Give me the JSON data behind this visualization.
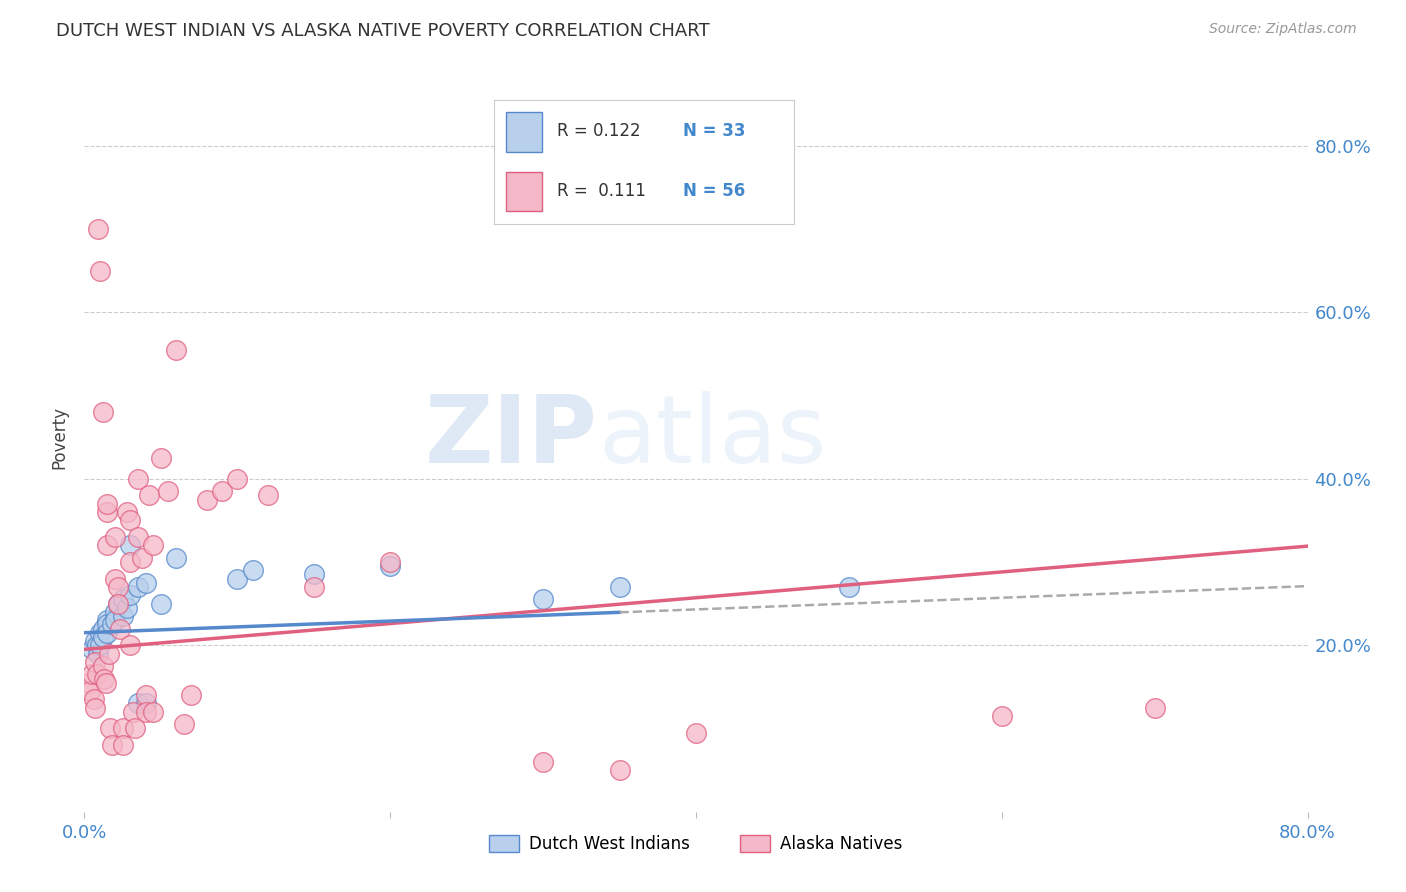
{
  "title": "DUTCH WEST INDIAN VS ALASKA NATIVE POVERTY CORRELATION CHART",
  "source": "Source: ZipAtlas.com",
  "ylabel": "Poverty",
  "ytick_labels": [
    "20.0%",
    "40.0%",
    "60.0%",
    "80.0%"
  ],
  "ytick_vals": [
    0.2,
    0.4,
    0.6,
    0.8
  ],
  "xlim": [
    0.0,
    0.8
  ],
  "ylim": [
    0.0,
    0.9
  ],
  "r_blue": 0.122,
  "n_blue": 33,
  "r_pink": 0.111,
  "n_pink": 56,
  "blue_fill": "#b8d0eb",
  "pink_fill": "#f5b8c8",
  "blue_edge": "#5588cc",
  "pink_edge": "#e06080",
  "blue_line_color": "#5588cc",
  "pink_line_color": "#e06080",
  "dash_color": "#aaaaaa",
  "blue_scatter": [
    [
      0.005,
      0.195
    ],
    [
      0.007,
      0.205
    ],
    [
      0.008,
      0.2
    ],
    [
      0.009,
      0.19
    ],
    [
      0.01,
      0.215
    ],
    [
      0.01,
      0.2
    ],
    [
      0.012,
      0.22
    ],
    [
      0.012,
      0.21
    ],
    [
      0.015,
      0.23
    ],
    [
      0.015,
      0.225
    ],
    [
      0.015,
      0.215
    ],
    [
      0.018,
      0.225
    ],
    [
      0.02,
      0.24
    ],
    [
      0.02,
      0.23
    ],
    [
      0.022,
      0.25
    ],
    [
      0.025,
      0.255
    ],
    [
      0.025,
      0.235
    ],
    [
      0.028,
      0.245
    ],
    [
      0.03,
      0.32
    ],
    [
      0.03,
      0.26
    ],
    [
      0.035,
      0.27
    ],
    [
      0.035,
      0.13
    ],
    [
      0.04,
      0.275
    ],
    [
      0.04,
      0.13
    ],
    [
      0.05,
      0.25
    ],
    [
      0.06,
      0.305
    ],
    [
      0.1,
      0.28
    ],
    [
      0.11,
      0.29
    ],
    [
      0.15,
      0.285
    ],
    [
      0.2,
      0.295
    ],
    [
      0.3,
      0.255
    ],
    [
      0.35,
      0.27
    ],
    [
      0.5,
      0.27
    ]
  ],
  "pink_scatter": [
    [
      0.003,
      0.155
    ],
    [
      0.004,
      0.145
    ],
    [
      0.005,
      0.165
    ],
    [
      0.006,
      0.135
    ],
    [
      0.007,
      0.125
    ],
    [
      0.007,
      0.18
    ],
    [
      0.008,
      0.165
    ],
    [
      0.009,
      0.7
    ],
    [
      0.01,
      0.65
    ],
    [
      0.012,
      0.48
    ],
    [
      0.012,
      0.175
    ],
    [
      0.013,
      0.16
    ],
    [
      0.014,
      0.155
    ],
    [
      0.015,
      0.36
    ],
    [
      0.015,
      0.37
    ],
    [
      0.015,
      0.32
    ],
    [
      0.016,
      0.19
    ],
    [
      0.017,
      0.1
    ],
    [
      0.018,
      0.08
    ],
    [
      0.02,
      0.33
    ],
    [
      0.02,
      0.28
    ],
    [
      0.022,
      0.27
    ],
    [
      0.022,
      0.25
    ],
    [
      0.023,
      0.22
    ],
    [
      0.025,
      0.1
    ],
    [
      0.025,
      0.08
    ],
    [
      0.028,
      0.36
    ],
    [
      0.03,
      0.35
    ],
    [
      0.03,
      0.3
    ],
    [
      0.03,
      0.2
    ],
    [
      0.032,
      0.12
    ],
    [
      0.033,
      0.1
    ],
    [
      0.035,
      0.4
    ],
    [
      0.035,
      0.33
    ],
    [
      0.038,
      0.305
    ],
    [
      0.04,
      0.14
    ],
    [
      0.04,
      0.12
    ],
    [
      0.042,
      0.38
    ],
    [
      0.045,
      0.32
    ],
    [
      0.045,
      0.12
    ],
    [
      0.05,
      0.425
    ],
    [
      0.055,
      0.385
    ],
    [
      0.06,
      0.555
    ],
    [
      0.065,
      0.105
    ],
    [
      0.07,
      0.14
    ],
    [
      0.08,
      0.375
    ],
    [
      0.09,
      0.385
    ],
    [
      0.1,
      0.4
    ],
    [
      0.12,
      0.38
    ],
    [
      0.15,
      0.27
    ],
    [
      0.2,
      0.3
    ],
    [
      0.3,
      0.06
    ],
    [
      0.35,
      0.05
    ],
    [
      0.4,
      0.095
    ],
    [
      0.6,
      0.115
    ],
    [
      0.7,
      0.125
    ]
  ],
  "watermark_zip": "ZIP",
  "watermark_atlas": "atlas",
  "legend_label_blue": "Dutch West Indians",
  "legend_label_pink": "Alaska Natives",
  "background_color": "#ffffff",
  "grid_color": "#cccccc"
}
